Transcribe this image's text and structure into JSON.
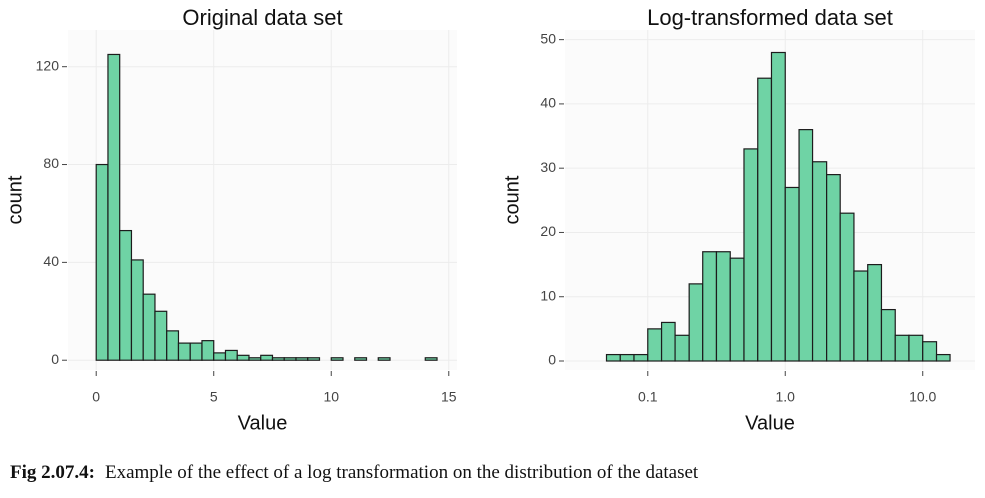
{
  "chart_data": [
    {
      "type": "histogram",
      "title": "Original data set",
      "x_label": "Value",
      "y_label": "count",
      "bins": [
        0,
        0.5,
        1,
        1.5,
        2,
        2.5,
        3,
        3.5,
        4,
        4.5,
        5,
        5.5,
        6,
        6.5,
        7,
        7.5,
        8,
        8.5,
        9,
        9.5,
        10,
        10.5,
        11,
        11.5,
        12,
        12.5,
        13,
        13.5,
        14,
        14.5
      ],
      "values": [
        80,
        125,
        53,
        41,
        27,
        20,
        12,
        7,
        7,
        8,
        3,
        4,
        2,
        1,
        2,
        1,
        1,
        1,
        1,
        0,
        1,
        0,
        1,
        0,
        1,
        0,
        0,
        0,
        1
      ],
      "color": "#6fd3a5",
      "xlim": [
        -1.2,
        15.35
      ],
      "ylim": [
        -4,
        135
      ],
      "xticks": [
        0,
        5,
        10,
        15
      ],
      "yticks": [
        0,
        40,
        80,
        120
      ],
      "grid": true,
      "log_x": false
    },
    {
      "type": "histogram",
      "title": "Log-transformed data set",
      "x_label": "Value",
      "y_label": "count",
      "bins": [
        0.0501,
        0.0631,
        0.0794,
        0.1,
        0.126,
        0.158,
        0.2,
        0.251,
        0.316,
        0.398,
        0.501,
        0.631,
        0.794,
        1,
        1.26,
        1.58,
        2,
        2.51,
        3.16,
        3.98,
        5.01,
        6.31,
        7.94,
        10,
        12.6,
        15.8
      ],
      "values": [
        1,
        1,
        1,
        5,
        6,
        4,
        12,
        17,
        17,
        16,
        33,
        44,
        48,
        27,
        36,
        31,
        29,
        23,
        14,
        15,
        8,
        4,
        4,
        3,
        1
      ],
      "color": "#6fd3a5",
      "xlim": [
        0.025,
        24
      ],
      "ylim": [
        -1.4,
        51.5
      ],
      "xticks": [
        0.1,
        {
          "value": 1,
          "label": "1.0"
        },
        {
          "value": 10,
          "label": "10.0"
        }
      ],
      "yticks": [
        0,
        10,
        20,
        30,
        40,
        50
      ],
      "grid": true,
      "log_x": true
    }
  ],
  "caption": {
    "label": "Fig 2.07.4:",
    "text": "Example of the effect of a log transformation on the distribution of the dataset"
  }
}
